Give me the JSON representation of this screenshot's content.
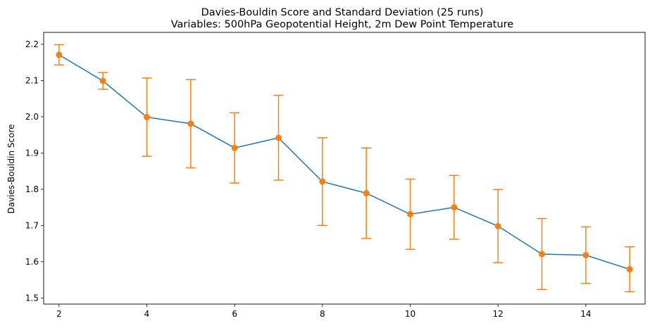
{
  "chart_data": {
    "type": "line",
    "title": "Davies-Bouldin Score and Standard Deviation (25 runs)",
    "subtitle": "Variables: 500hPa Geopotential Height, 2m Dew Point Temperature",
    "xlabel": "",
    "ylabel": "Davies-Bouldin Score",
    "xlim": [
      1.65,
      15.35
    ],
    "ylim": [
      1.483,
      2.233
    ],
    "xticks": [
      2,
      4,
      6,
      8,
      10,
      12,
      14
    ],
    "yticks": [
      1.5,
      1.6,
      1.7,
      1.8,
      1.9,
      2.0,
      2.1,
      2.2
    ],
    "xtick_labels": [
      "2",
      "4",
      "6",
      "8",
      "10",
      "12",
      "14"
    ],
    "ytick_labels": [
      "1.5",
      "1.6",
      "1.7",
      "1.8",
      "1.9",
      "2.0",
      "2.1",
      "2.2"
    ],
    "grid": false,
    "legend": "none",
    "line_color": "#1f77b4",
    "error_color": "#ff7f0e",
    "x": [
      2,
      3,
      4,
      5,
      6,
      7,
      8,
      9,
      10,
      11,
      12,
      13,
      14,
      15
    ],
    "y": [
      2.171,
      2.099,
      1.999,
      1.981,
      1.914,
      1.942,
      1.821,
      1.789,
      1.731,
      1.75,
      1.698,
      1.621,
      1.618,
      1.579
    ],
    "yerr": [
      0.028,
      0.023,
      0.108,
      0.122,
      0.097,
      0.117,
      0.121,
      0.125,
      0.097,
      0.088,
      0.101,
      0.098,
      0.078,
      0.062
    ]
  }
}
